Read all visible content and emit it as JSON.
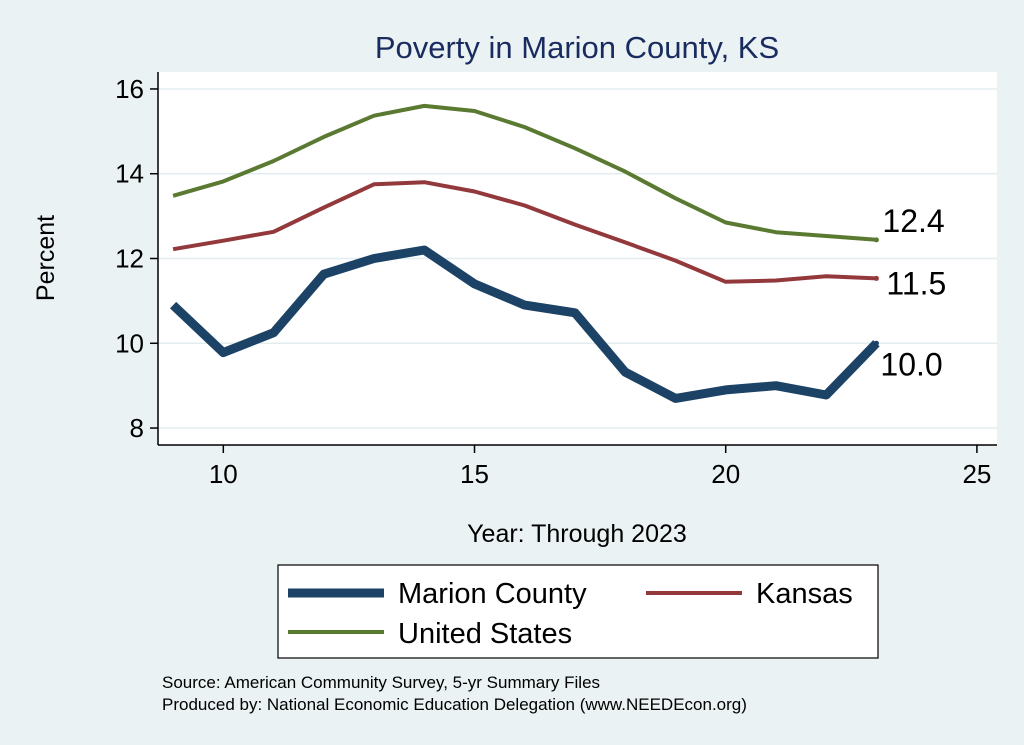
{
  "chart_data": {
    "type": "line",
    "title": "Poverty in Marion County, KS",
    "xlabel": "Year: Through 2023",
    "ylabel": "Percent",
    "xlim": [
      8.7,
      25.4
    ],
    "ylim": [
      7.6,
      16.4
    ],
    "xticks": [
      10,
      15,
      20,
      25
    ],
    "yticks": [
      8,
      10,
      12,
      14,
      16
    ],
    "x": [
      9,
      10,
      11,
      12,
      13,
      14,
      15,
      16,
      17,
      18,
      19,
      20,
      21,
      22,
      23
    ],
    "series": [
      {
        "name": "Marion County",
        "color": "#1c4266",
        "width": 9,
        "values": [
          10.9,
          9.78,
          10.25,
          11.63,
          12.0,
          12.2,
          11.4,
          10.9,
          10.72,
          9.32,
          8.7,
          8.9,
          9.0,
          8.78,
          10.0
        ],
        "end_label": "10.0"
      },
      {
        "name": "Kansas",
        "color": "#93393c",
        "width": 4,
        "values": [
          12.22,
          12.42,
          12.63,
          13.2,
          13.75,
          13.8,
          13.58,
          13.25,
          12.8,
          12.38,
          11.95,
          11.45,
          11.48,
          11.58,
          11.53
        ],
        "end_label": "11.5"
      },
      {
        "name": "United States",
        "color": "#5a7a32",
        "width": 4,
        "values": [
          13.48,
          13.82,
          14.3,
          14.87,
          15.37,
          15.6,
          15.48,
          15.1,
          14.6,
          14.05,
          13.42,
          12.85,
          12.62,
          12.53,
          12.44
        ],
        "end_label": "12.4"
      }
    ],
    "legend": {
      "position": "bottom",
      "items": [
        "Marion County",
        "Kansas",
        "United States"
      ]
    },
    "grid": true,
    "source_lines": [
      "Source: American Community Survey, 5-yr Summary Files",
      "Produced by: National Economic Education Delegation (www.NEEDEcon.org)"
    ]
  }
}
